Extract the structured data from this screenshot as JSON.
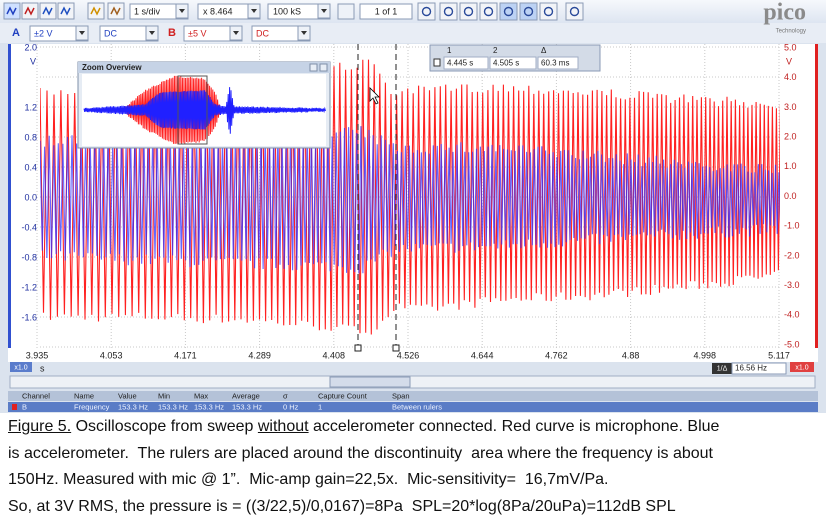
{
  "toolbar": {
    "timebase": "1 s/div",
    "zoom": "x 8.464",
    "samples": "100 kS",
    "page": "1 of 1",
    "brand": "pico",
    "brand_sub": "Technology"
  },
  "channels": [
    {
      "name": "A",
      "range": "±2 V",
      "coupling": "DC"
    },
    {
      "name": "B",
      "range": "±5 V",
      "coupling": "DC"
    }
  ],
  "plot": {
    "left_unit": "V",
    "left_ticks": [
      "2.0",
      "1.2",
      "0.8",
      "0.4",
      "0.0",
      "-0.4",
      "-0.8",
      "-1.2",
      "-1.6"
    ],
    "right_unit": "V",
    "right_ticks": [
      "5.0",
      "4.0",
      "3.0",
      "2.0",
      "1.0",
      "0.0",
      "-1.0",
      "-2.0",
      "-3.0",
      "-4.0",
      "-5.0"
    ],
    "x_unit": "s",
    "x_ticks": [
      "3.935",
      "4.053",
      "4.171",
      "4.289",
      "4.408",
      "4.526",
      "4.644",
      "4.762",
      "4.88",
      "4.998",
      "5.117"
    ],
    "zoom_left": "x1.0",
    "zoom_right": "x1.0",
    "zoom_overview_title": "Zoom Overview"
  },
  "rulers": {
    "headers": [
      "1",
      "2",
      "Δ"
    ],
    "values": [
      "4.445 s",
      "4.505 s",
      "60.3 ms"
    ],
    "freq_label": "1/Δ",
    "freq": "16.56 Hz"
  },
  "measurements": {
    "headers": [
      "Channel",
      "Name",
      "Value",
      "Min",
      "Max",
      "Average",
      "σ",
      "Capture Count",
      "Span"
    ],
    "rows": [
      [
        "B",
        "Frequency",
        "153.3 Hz",
        "153.3 Hz",
        "153.3 Hz",
        "153.3 Hz",
        "0 Hz",
        "1",
        "Between rulers"
      ]
    ]
  },
  "caption": {
    "label": "Figure 5.",
    "text1a": " Oscilloscope from sweep ",
    "emphasis": "without",
    "text1b": " accelerometer connected. Red curve is microphone. Blue",
    "lines": [
      "is accelerometer.  The rulers are placed around the discontinuity  area where the frequency is about",
      "150Hz. Measured with mic @ 1”.  Mic-amp gain=22,5x.  Mic-sensitivity=  16,7mV/Pa.",
      "So, at 3V RMS, the pressure is = ((3/22,5)/0,0167)=8Pa  SPL=20*log(8Pa/20uPa)=112dB SPL"
    ]
  }
}
